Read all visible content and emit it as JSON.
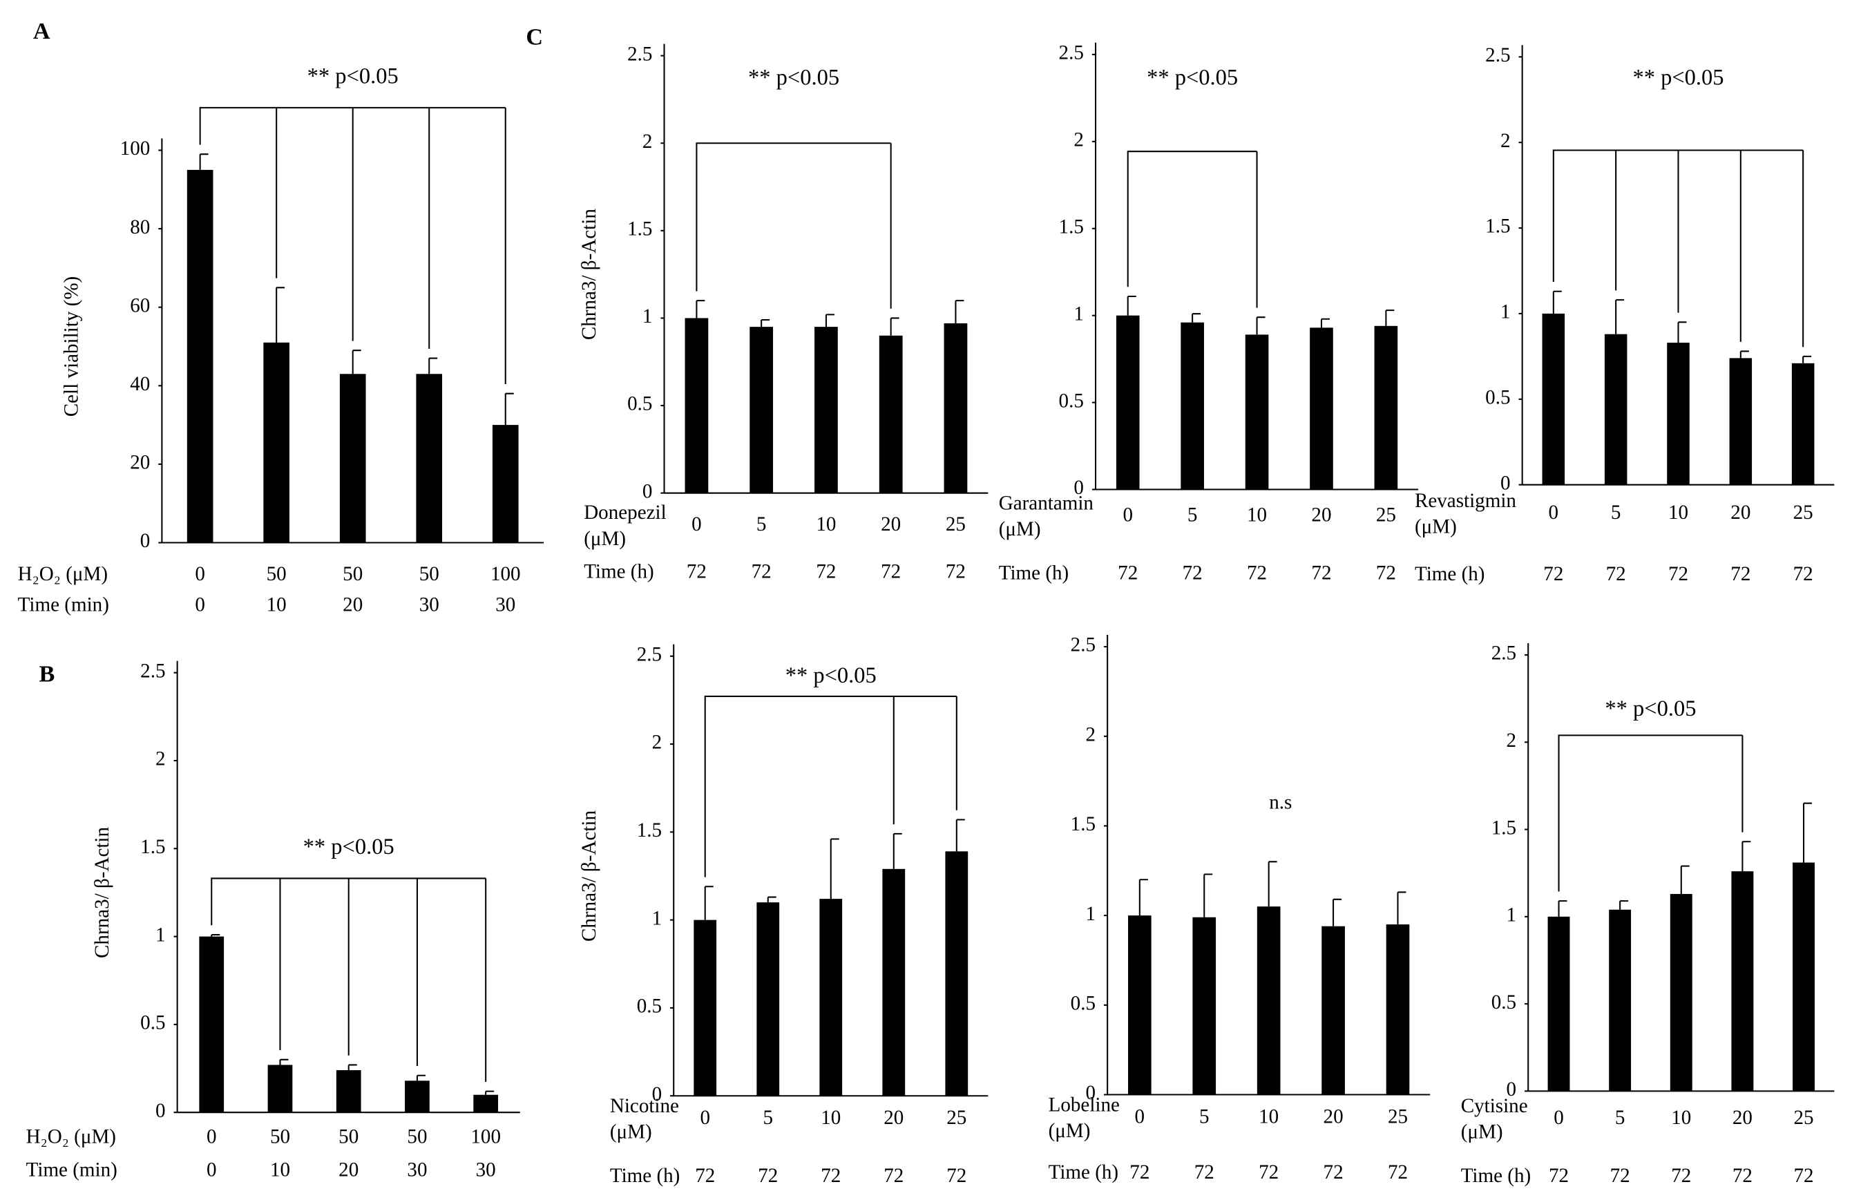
{
  "chart_data": [
    {
      "type": "bar",
      "panel": "A",
      "ylabel": "Cell viability (%)",
      "row_labels": [
        "H₂O₂  (μM)",
        "Time   (min)"
      ],
      "categories": [
        "0",
        "50",
        "50",
        "50",
        "100"
      ],
      "times": [
        "0",
        "10",
        "20",
        "30",
        "30"
      ],
      "values": [
        95,
        51,
        43,
        43,
        30
      ],
      "errors": [
        4,
        14,
        6,
        4,
        8
      ],
      "color": "#000000",
      "ylim": [
        0,
        100
      ],
      "yticks": [
        0,
        20,
        40,
        60,
        80,
        100
      ],
      "significance": {
        "text": "** p<0.05",
        "from": 0,
        "to": [
          1,
          2,
          3,
          4
        ]
      }
    },
    {
      "type": "bar",
      "panel": "B",
      "ylabel": "Chrna3/ β-Actin",
      "row_labels": [
        "H₂O₂   (μM)",
        "Time    (min)"
      ],
      "categories": [
        "0",
        "50",
        "50",
        "50",
        "100"
      ],
      "times": [
        "0",
        "10",
        "20",
        "30",
        "30"
      ],
      "values": [
        1.0,
        0.27,
        0.24,
        0.18,
        0.1
      ],
      "errors": [
        0.01,
        0.03,
        0.03,
        0.03,
        0.02
      ],
      "color": "#000000",
      "ylim": [
        0,
        2.5
      ],
      "yticks": [
        0,
        0.5,
        1,
        1.5,
        2,
        2.5
      ],
      "significance": {
        "text": "** p<0.05",
        "from": 0,
        "to": [
          1,
          2,
          3,
          4
        ]
      }
    },
    {
      "type": "bar",
      "panel": "C",
      "ylabel": "Chrna3/ β-Actin",
      "row_labels": [
        "Donepezil",
        "(μM)",
        "Time (h)"
      ],
      "categories": [
        "0",
        "5",
        "10",
        "20",
        "25"
      ],
      "times": [
        "72",
        "72",
        "72",
        "72",
        "72"
      ],
      "values": [
        1.0,
        0.95,
        0.95,
        0.9,
        0.97
      ],
      "errors": [
        0.1,
        0.04,
        0.07,
        0.1,
        0.13
      ],
      "color": "#000000",
      "ylim": [
        0,
        2.5
      ],
      "yticks": [
        0,
        0.5,
        1,
        1.5,
        2,
        2.5
      ],
      "significance": {
        "text": "** p<0.05",
        "from": 0,
        "to": [
          3
        ]
      }
    },
    {
      "type": "bar",
      "row_labels": [
        "Garantamin",
        "(μM)",
        "Time (h)"
      ],
      "categories": [
        "0",
        "5",
        "10",
        "20",
        "25"
      ],
      "times": [
        "72",
        "72",
        "72",
        "72",
        "72"
      ],
      "values": [
        1.0,
        0.96,
        0.89,
        0.93,
        0.94
      ],
      "errors": [
        0.11,
        0.05,
        0.1,
        0.05,
        0.09
      ],
      "color": "#000000",
      "ylim": [
        0,
        2.5
      ],
      "yticks": [
        0,
        0.5,
        1,
        1.5,
        2,
        2.5
      ],
      "significance": {
        "text": "** p<0.05",
        "from": 0,
        "to": [
          2
        ]
      }
    },
    {
      "type": "bar",
      "row_labels": [
        "Revastigmin",
        "(μM)",
        "Time (h)"
      ],
      "categories": [
        "0",
        "5",
        "10",
        "20",
        "25"
      ],
      "times": [
        "72",
        "72",
        "72",
        "72",
        "72"
      ],
      "values": [
        1.0,
        0.88,
        0.83,
        0.74,
        0.71
      ],
      "errors": [
        0.13,
        0.2,
        0.12,
        0.04,
        0.04
      ],
      "color": "#000000",
      "ylim": [
        0,
        2.5
      ],
      "yticks": [
        0,
        0.5,
        1,
        1.5,
        2,
        2.5
      ],
      "significance": {
        "text": "** p<0.05",
        "from": 0,
        "to": [
          1,
          2,
          3,
          4
        ]
      }
    },
    {
      "type": "bar",
      "ylabel": "Chrna3/ β-Actin",
      "row_labels": [
        "Nicotine",
        "(μM)",
        "Time (h)"
      ],
      "categories": [
        "0",
        "5",
        "10",
        "20",
        "25"
      ],
      "times": [
        "72",
        "72",
        "72",
        "72",
        "72"
      ],
      "values": [
        1.0,
        1.1,
        1.12,
        1.29,
        1.39
      ],
      "errors": [
        0.19,
        0.03,
        0.34,
        0.2,
        0.18
      ],
      "color": "#000000",
      "ylim": [
        0,
        2.5
      ],
      "yticks": [
        0,
        0.5,
        1,
        1.5,
        2,
        2.5
      ],
      "significance": {
        "text": "** p<0.05",
        "from": 0,
        "to": [
          3,
          4
        ]
      }
    },
    {
      "type": "bar",
      "row_labels": [
        "Lobeline",
        "(μM)",
        "Time (h)"
      ],
      "categories": [
        "0",
        "5",
        "10",
        "20",
        "25"
      ],
      "times": [
        "72",
        "72",
        "72",
        "72",
        "72"
      ],
      "values": [
        1.0,
        0.99,
        1.05,
        0.94,
        0.95
      ],
      "errors": [
        0.2,
        0.24,
        0.25,
        0.15,
        0.18
      ],
      "color": "#000000",
      "ylim": [
        0,
        2.5
      ],
      "yticks": [
        0,
        0.5,
        1,
        1.5,
        2,
        2.5
      ],
      "annotation": "n.s"
    },
    {
      "type": "bar",
      "row_labels": [
        "Cytisine",
        "(μM)",
        "Time (h)"
      ],
      "categories": [
        "0",
        "5",
        "10",
        "20",
        "25"
      ],
      "times": [
        "72",
        "72",
        "72",
        "72",
        "72"
      ],
      "values": [
        1.0,
        1.04,
        1.13,
        1.26,
        1.31
      ],
      "errors": [
        0.09,
        0.05,
        0.16,
        0.17,
        0.34
      ],
      "color": "#000000",
      "ylim": [
        0,
        2.5
      ],
      "yticks": [
        0,
        0.5,
        1,
        1.5,
        2,
        2.5
      ],
      "significance": {
        "text": "** p<0.05",
        "from": 0,
        "to": [
          3
        ]
      }
    }
  ]
}
